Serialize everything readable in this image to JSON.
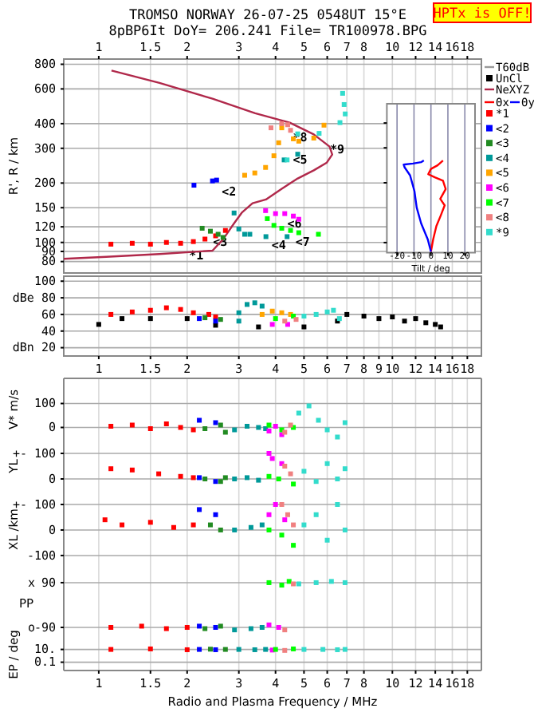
{
  "chart_data": [
    {
      "type": "scatter",
      "title": "TROMSO NORWAY   26-07-25 0548UT 15°E",
      "subtitle": "8pBP6It DoY= 206.241 File= TR100978.BPG",
      "ylabel": "R', R / km",
      "log": "xy",
      "xlim": [
        0.76,
        20.1
      ],
      "ylim": [
        70,
        850
      ],
      "xticks": [
        1,
        1.5,
        2,
        3,
        4,
        5,
        6,
        7,
        8,
        10,
        12,
        14,
        16,
        18
      ],
      "yticks": [
        80,
        90,
        100,
        120,
        150,
        200,
        300,
        400,
        600,
        800
      ],
      "grid": true,
      "legend": "right",
      "marker": "square",
      "annotations": [
        "HPTx is OFF!",
        {
          "text": "*1",
          "x": 1.98,
          "y": 92
        },
        {
          "text": "<2",
          "x": 2.56,
          "y": 193
        },
        {
          "text": "<3",
          "x": 2.39,
          "y": 107
        },
        {
          "text": "<4",
          "x": 3.78,
          "y": 104
        },
        {
          "text": "<5",
          "x": 4.47,
          "y": 280
        },
        {
          "text": "<6",
          "x": 4.28,
          "y": 133
        },
        {
          "text": "<7",
          "x": 4.56,
          "y": 107
        },
        {
          "text": "*8",
          "x": 4.47,
          "y": 365
        },
        {
          "text": "*9",
          "x": 5.98,
          "y": 317
        }
      ],
      "series": [
        {
          "name": "T60dB",
          "type": "line",
          "color": "#999999",
          "values": [
            null
          ]
        },
        {
          "name": "UnCl",
          "type": "scatter",
          "color": "#000000",
          "values": [
            null
          ]
        },
        {
          "name": "NeXYZ",
          "type": "line",
          "marker": "none",
          "color": "#b0284a",
          "x": [
            0.76,
            1.06,
            1.61,
            2.44,
            2.65,
            2.77,
            2.89,
            3.07,
            3.34,
            3.71,
            4.2,
            4.76,
            5.4,
            5.98,
            6.24,
            6.11,
            5.4,
            4.47,
            3.41,
            2.44,
            1.61,
            1.105
          ],
          "values": [
            82.6,
            84.5,
            87.3,
            90.9,
            103.6,
            114,
            125,
            141.5,
            158,
            165,
            187,
            211,
            232,
            254,
            279,
            306,
            353,
            405,
            452,
            535,
            644,
            743
          ]
        },
        {
          "name": "*1",
          "color": "#ff0000",
          "x": [
            1.1,
            1.3,
            1.5,
            1.7,
            1.9,
            2.1,
            2.3,
            2.5,
            2.7
          ],
          "values": [
            98,
            99,
            98,
            100,
            99,
            101,
            104,
            108,
            115
          ]
        },
        {
          "name": "<2",
          "color": "#0000ff",
          "x": [
            2.11,
            2.44,
            2.52
          ],
          "values": [
            195,
            205,
            207
          ]
        },
        {
          "name": "<3",
          "color": "#228b22",
          "x": [
            2.25,
            2.4,
            2.55,
            2.65
          ],
          "values": [
            118,
            114,
            110,
            106
          ]
        },
        {
          "name": "<4",
          "color": "#009999",
          "x": [
            2.89,
            3.0,
            3.14,
            3.27,
            3.71,
            4.38,
            4.28,
            4.76
          ],
          "values": [
            141,
            117,
            110,
            110,
            107,
            107,
            262,
            280
          ]
        },
        {
          "name": "<5",
          "color": "#ffa500",
          "x": [
            3.14,
            3.4,
            3.7,
            3.95,
            4.1,
            4.2,
            4.6,
            4.8,
            5.4,
            5.85
          ],
          "values": [
            219,
            225,
            240,
            275,
            320,
            381,
            335,
            326,
            338,
            393
          ]
        },
        {
          "name": "<6",
          "color": "#ff00ff",
          "x": [
            3.7,
            4.0,
            4.3,
            4.6,
            4.8
          ],
          "values": [
            145,
            140,
            140,
            136,
            131
          ]
        },
        {
          "name": "<7",
          "color": "#00ff00",
          "x": [
            3.75,
            3.95,
            4.2,
            4.5,
            4.8,
            5.6
          ],
          "values": [
            132,
            122,
            118,
            115,
            112,
            110
          ]
        },
        {
          "name": "<8",
          "color": "#f08080",
          "x": [
            3.86,
            4.2,
            4.4,
            4.5
          ],
          "values": [
            381,
            400,
            395,
            370
          ]
        },
        {
          "name": "*9",
          "color": "#33dccc",
          "x": [
            6.77,
            6.85,
            6.91,
            6.63,
            5.63,
            4.76,
            4.38
          ],
          "values": [
            570,
            500,
            448,
            405,
            357,
            355,
            262
          ]
        }
      ]
    },
    {
      "type": "line",
      "xlabel": "Tilt / deg",
      "log": "y",
      "xlim": [
        -26,
        26
      ],
      "ylim": [
        89,
        500
      ],
      "yticks": [
        100,
        200,
        300,
        400
      ],
      "xticks": [
        -20,
        -10,
        0,
        10,
        20
      ],
      "tick_labels": "x",
      "grid": "x",
      "legend": "top",
      "series": [
        {
          "name": "Θx",
          "color": "#ff0000",
          "x": [
            0,
            1.3,
            3.2,
            5.8,
            8.1,
            5.5,
            8.7,
            7.1,
            2.3,
            -1.6,
            0,
            3.9,
            7.1
          ],
          "values": [
            90,
            103.6,
            121,
            137,
            154,
            166,
            186,
            205,
            213,
            221,
            235,
            245,
            259
          ]
        },
        {
          "name": "Θy",
          "color": "#0000ff",
          "x": [
            0,
            -1.9,
            -5.8,
            -8.4,
            -9.7,
            -12.3,
            -15.5,
            -16.1,
            -10.6,
            -5.8,
            -4.2
          ],
          "values": [
            90,
            104,
            125,
            150,
            181,
            218,
            239,
            247,
            250,
            254,
            259
          ]
        }
      ]
    },
    {
      "type": "scatter",
      "log": "x",
      "xlim": [
        0.76,
        20.1
      ],
      "ylim": [
        10,
        106
      ],
      "xticks": [
        1,
        1.5,
        2,
        3,
        4,
        5,
        6,
        7,
        8,
        9,
        10,
        12,
        14,
        16,
        18
      ],
      "yticks": [
        {
          "value": 20,
          "label": "dBn 20"
        },
        40,
        60,
        {
          "value": 80,
          "label": "dBe 80"
        },
        100
      ],
      "grid": true,
      "marker": "square",
      "series": [
        {
          "color": "#000000",
          "x": [
            1.0,
            1.2,
            1.5,
            2.0,
            2.5,
            3.5,
            5,
            6.5,
            7,
            8,
            9,
            10,
            11,
            12,
            13,
            14,
            14.6
          ],
          "values": [
            48,
            55,
            55,
            55,
            47,
            45,
            45,
            52,
            60,
            58,
            55,
            57,
            52,
            55,
            50,
            48,
            45
          ]
        },
        {
          "color": "#ff0000",
          "x": [
            1.1,
            1.3,
            1.5,
            1.7,
            1.9,
            2.1,
            2.37,
            2.5
          ],
          "values": [
            60,
            63,
            65,
            68,
            66,
            62,
            60,
            57
          ]
        },
        {
          "color": "#0000ff",
          "x": [
            2.2,
            2.5
          ],
          "values": [
            55,
            52
          ]
        },
        {
          "color": "#228b22",
          "x": [
            2.3,
            2.6
          ],
          "values": [
            56,
            54
          ]
        },
        {
          "color": "#009999",
          "x": [
            3.0,
            3.2,
            3.4,
            3.6,
            3.0
          ],
          "values": [
            62,
            72,
            74,
            70,
            52
          ]
        },
        {
          "color": "#ffa500",
          "x": [
            3.6,
            3.9,
            4.2,
            4.5
          ],
          "values": [
            60,
            64,
            62,
            60
          ]
        },
        {
          "color": "#ff00ff",
          "x": [
            3.9,
            4.4
          ],
          "values": [
            48,
            48
          ]
        },
        {
          "color": "#00ff00",
          "x": [
            4.0,
            4.6
          ],
          "values": [
            55,
            58
          ]
        },
        {
          "color": "#f08080",
          "x": [
            4.3,
            4.7
          ],
          "values": [
            52,
            54
          ]
        },
        {
          "color": "#33dccc",
          "x": [
            5.0,
            5.5,
            6.0,
            6.3,
            6.6
          ],
          "values": [
            58,
            60,
            63,
            65,
            55
          ]
        }
      ]
    },
    {
      "type": "scatter",
      "ylabel": "V* m/s",
      "log": "x",
      "xlim": [
        0.76,
        20.1
      ],
      "ylim": [
        -55,
        205
      ],
      "xticks": [
        1,
        1.5,
        2,
        3,
        4,
        5,
        6,
        7,
        8,
        10,
        12,
        14,
        16,
        18
      ],
      "yticks": [
        0,
        100
      ],
      "tick_labels": "y",
      "grid": true,
      "marker": "square",
      "series": [
        {
          "color": "#ff0000",
          "x": [
            1.1,
            1.3,
            1.5,
            1.7,
            1.9,
            2.1
          ],
          "values": [
            5,
            10,
            -5,
            15,
            0,
            -10
          ]
        },
        {
          "color": "#0000ff",
          "x": [
            2.2,
            2.5
          ],
          "values": [
            30,
            20
          ]
        },
        {
          "color": "#228b22",
          "x": [
            2.3,
            2.6,
            2.7
          ],
          "values": [
            -5,
            10,
            -20
          ]
        },
        {
          "color": "#009999",
          "x": [
            2.9,
            3.2,
            3.5,
            3.7
          ],
          "values": [
            -10,
            5,
            0,
            -5
          ]
        },
        {
          "color": "#ff00ff",
          "x": [
            3.8,
            4.0,
            4.2
          ],
          "values": [
            -15,
            5,
            -30
          ]
        },
        {
          "color": "#00ff00",
          "x": [
            3.8,
            4.2,
            4.6
          ],
          "values": [
            10,
            -10,
            0
          ]
        },
        {
          "color": "#f08080",
          "x": [
            4.3,
            4.5
          ],
          "values": [
            -20,
            10
          ]
        },
        {
          "color": "#33dccc",
          "x": [
            4.8,
            5.2,
            5.6,
            6.0,
            6.5,
            6.9
          ],
          "values": [
            60,
            90,
            30,
            -10,
            -40,
            20
          ]
        }
      ]
    },
    {
      "type": "scatter",
      "ylabel": "YL",
      "log": "x",
      "xlim": [
        0.76,
        20.1
      ],
      "ylim": [
        -50,
        150
      ],
      "xticks": [
        1,
        1.5,
        2,
        3,
        4,
        5,
        6,
        7,
        8,
        10,
        12,
        14,
        16,
        18
      ],
      "yticks": [
        0,
        100
      ],
      "annotations": [
        "+-"
      ],
      "tick_labels": "y",
      "grid": true,
      "marker": "square",
      "series": [
        {
          "color": "#ff0000",
          "x": [
            1.1,
            1.3,
            1.6,
            1.9,
            2.1
          ],
          "values": [
            40,
            35,
            20,
            10,
            5
          ]
        },
        {
          "color": "#0000ff",
          "x": [
            2.2,
            2.5
          ],
          "values": [
            5,
            -10
          ]
        },
        {
          "color": "#228b22",
          "x": [
            2.3,
            2.6,
            2.7
          ],
          "values": [
            0,
            -10,
            5
          ]
        },
        {
          "color": "#009999",
          "x": [
            2.9,
            3.2,
            3.5
          ],
          "values": [
            0,
            5,
            -5
          ]
        },
        {
          "color": "#ff00ff",
          "x": [
            3.8,
            3.9,
            4.2
          ],
          "values": [
            100,
            80,
            60
          ]
        },
        {
          "color": "#00ff00",
          "x": [
            3.8,
            4.1,
            4.6
          ],
          "values": [
            10,
            0,
            -20
          ]
        },
        {
          "color": "#f08080",
          "x": [
            4.3,
            4.5
          ],
          "values": [
            50,
            20
          ]
        },
        {
          "color": "#33dccc",
          "x": [
            5.0,
            5.5,
            6.0,
            6.5,
            6.9
          ],
          "values": [
            30,
            -10,
            60,
            0,
            40
          ]
        }
      ]
    },
    {
      "type": "scatter",
      "ylabel": "XL /km",
      "log": "x",
      "xlim": [
        0.76,
        20.1
      ],
      "ylim": [
        -144,
        150
      ],
      "xticks": [
        1,
        1.5,
        2,
        3,
        4,
        5,
        6,
        7,
        8,
        10,
        12,
        14,
        16,
        18
      ],
      "yticks": [
        -100,
        0,
        100
      ],
      "annotations": [
        "+-"
      ],
      "tick_labels": "y",
      "grid": true,
      "marker": "square",
      "series": [
        {
          "color": "#ff0000",
          "x": [
            1.05,
            1.2,
            1.5,
            1.8,
            2.1
          ],
          "values": [
            40,
            20,
            30,
            10,
            20
          ]
        },
        {
          "color": "#0000ff",
          "x": [
            2.2,
            2.5
          ],
          "values": [
            80,
            60
          ]
        },
        {
          "color": "#228b22",
          "x": [
            2.4,
            2.6
          ],
          "values": [
            20,
            0
          ]
        },
        {
          "color": "#009999",
          "x": [
            2.9,
            3.3,
            3.6
          ],
          "values": [
            0,
            10,
            20
          ]
        },
        {
          "color": "#ff00ff",
          "x": [
            3.8,
            4.0,
            4.3
          ],
          "values": [
            60,
            100,
            40
          ]
        },
        {
          "color": "#00ff00",
          "x": [
            3.8,
            4.2,
            4.6
          ],
          "values": [
            0,
            -20,
            -60
          ]
        },
        {
          "color": "#f08080",
          "x": [
            4.2,
            4.4,
            4.6
          ],
          "values": [
            100,
            60,
            20
          ]
        },
        {
          "color": "#33dccc",
          "x": [
            5.0,
            5.5,
            6.0,
            6.5,
            6.9
          ],
          "values": [
            20,
            60,
            -40,
            100,
            0
          ]
        }
      ]
    },
    {
      "type": "scatter",
      "ylabel": "PP",
      "log": "x",
      "xlim": [
        0.76,
        20.1
      ],
      "ylim": [
        -135,
        154
      ],
      "xticks": [
        1,
        1.5,
        2,
        3,
        4,
        5,
        6,
        7,
        8,
        10,
        12,
        14,
        16,
        18
      ],
      "yticks": [
        -90,
        90
      ],
      "annotations": [
        "x",
        "o"
      ],
      "tick_labels": "y",
      "grid": true,
      "marker": "square",
      "series": [
        {
          "color": "#ff0000",
          "x": [
            1.1,
            1.4,
            1.7,
            2.0
          ],
          "values": [
            -90,
            -85,
            -95,
            -90
          ]
        },
        {
          "color": "#0000ff",
          "x": [
            2.2,
            2.5
          ],
          "values": [
            -85,
            -90
          ]
        },
        {
          "color": "#228b22",
          "x": [
            2.3,
            2.6
          ],
          "values": [
            -95,
            -85
          ]
        },
        {
          "color": "#009999",
          "x": [
            2.9,
            3.3,
            3.6
          ],
          "values": [
            -100,
            -95,
            -90
          ]
        },
        {
          "color": "#ff00ff",
          "x": [
            3.8,
            4.1
          ],
          "values": [
            -80,
            -90
          ]
        },
        {
          "color": "#00ff00",
          "x": [
            3.8,
            4.2,
            4.45
          ],
          "values": [
            90,
            80,
            95
          ]
        },
        {
          "color": "#f08080",
          "x": [
            4.3,
            4.6
          ],
          "values": [
            -100,
            85
          ]
        },
        {
          "color": "#33dccc",
          "x": [
            4.8,
            5.5,
            6.2,
            6.9
          ],
          "values": [
            85,
            90,
            95,
            90
          ]
        }
      ]
    },
    {
      "type": "scatter",
      "ylabel": "EP / deg",
      "xlabel": "Radio and Plasma Frequency / MHz",
      "log": "xy",
      "xlim": [
        0.76,
        20.1
      ],
      "ylim": [
        0.005,
        500
      ],
      "xticks": [
        1,
        1.5,
        2,
        3,
        4,
        5,
        6,
        7,
        8,
        10,
        12,
        14,
        16,
        18
      ],
      "yticks": [
        0.1,
        {
          "value": 10,
          "label": "10."
        }
      ],
      "grid": true,
      "marker": "square",
      "series": [
        {
          "color": "#ff0000",
          "x": [
            1.1,
            1.5,
            2.0
          ],
          "values": [
            10,
            12,
            9
          ]
        },
        {
          "color": "#0000ff",
          "x": [
            2.2,
            2.5
          ],
          "values": [
            10,
            9
          ]
        },
        {
          "color": "#228b22",
          "x": [
            2.4,
            2.7
          ],
          "values": [
            11,
            10
          ]
        },
        {
          "color": "#009999",
          "x": [
            3.0,
            3.4,
            3.7
          ],
          "values": [
            10,
            9,
            10
          ]
        },
        {
          "color": "#ff00ff",
          "x": [
            3.9
          ],
          "values": [
            8
          ]
        },
        {
          "color": "#00ff00",
          "x": [
            4.0,
            4.6
          ],
          "values": [
            10,
            12
          ]
        },
        {
          "color": "#f08080",
          "x": [
            4.3
          ],
          "values": [
            7
          ]
        },
        {
          "color": "#33dccc",
          "x": [
            5.0,
            5.8,
            6.5,
            6.9
          ],
          "values": [
            10,
            10,
            9,
            10
          ]
        }
      ]
    }
  ]
}
